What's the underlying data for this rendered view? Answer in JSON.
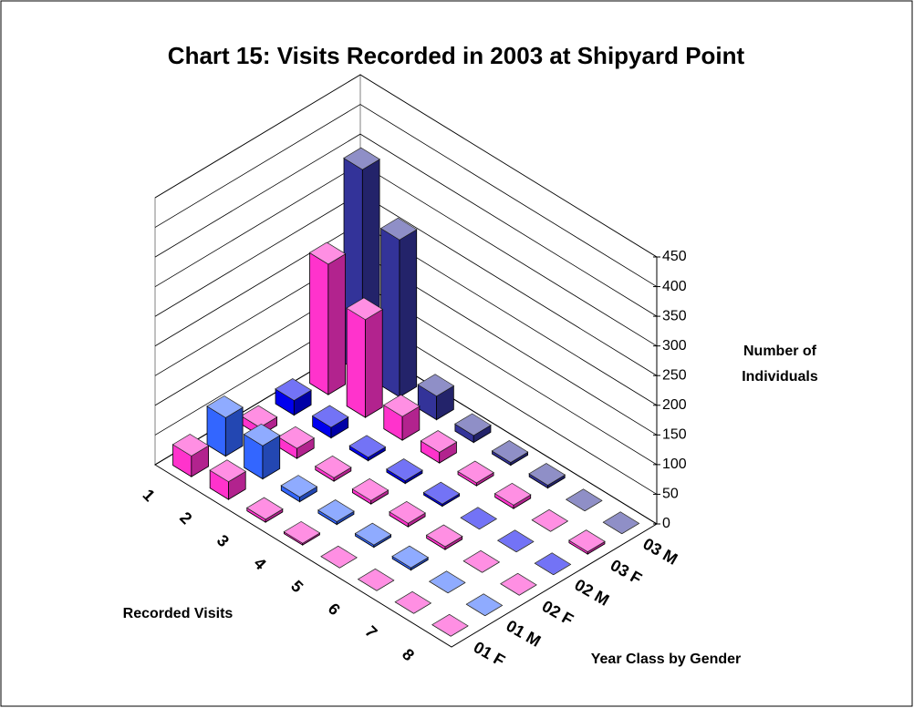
{
  "chart_data": {
    "type": "bar3d",
    "title": "Chart 15:  Visits Recorded in 2003 at Shipyard Point",
    "x_label": "Recorded Visits",
    "series_label": "Year Class by Gender",
    "y_label": "Number of Individuals",
    "categories": [
      "1",
      "2",
      "3",
      "4",
      "5",
      "6",
      "7",
      "8"
    ],
    "series": [
      {
        "name": "01 F",
        "color": "#ff33cc",
        "values": [
          35,
          30,
          5,
          3,
          0,
          0,
          0,
          0
        ]
      },
      {
        "name": "01 M",
        "color": "#3366ff",
        "values": [
          65,
          56,
          8,
          5,
          4,
          4,
          0,
          0
        ]
      },
      {
        "name": "02 F",
        "color": "#ff33cc",
        "values": [
          14,
          17,
          6,
          6,
          6,
          5,
          0,
          0
        ]
      },
      {
        "name": "02 M",
        "color": "#0000ee",
        "values": [
          25,
          18,
          6,
          5,
          4,
          0,
          0,
          0
        ]
      },
      {
        "name": "03 F",
        "color": "#ff33cc",
        "values": [
          220,
          165,
          40,
          18,
          5,
          6,
          0,
          4
        ]
      },
      {
        "name": "03 M",
        "color": "#333399",
        "values": [
          345,
          265,
          40,
          12,
          5,
          5,
          0,
          0
        ]
      }
    ],
    "ylim": [
      0,
      450
    ],
    "yticks": [
      0,
      50,
      100,
      150,
      200,
      250,
      300,
      350,
      400,
      450
    ],
    "grid": true
  }
}
